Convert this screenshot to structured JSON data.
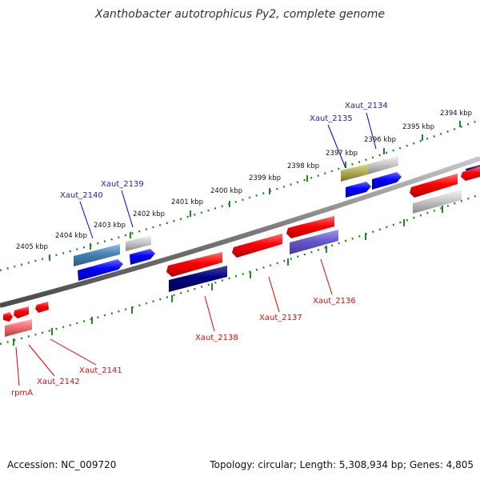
{
  "title": "Xanthobacter autotrophicus Py2, complete genome",
  "footer": {
    "accession": "Accession: NC_009720",
    "summary": "Topology: circular; Length: 5,308,934 bp; Genes: 4,805"
  },
  "scale_labels": [
    "2405 kbp",
    "2404 kbp",
    "2403 kbp",
    "2402 kbp",
    "2401 kbp",
    "2400 kbp",
    "2399 kbp",
    "2398 kbp",
    "2397 kbp",
    "2396 kbp",
    "2395 kbp",
    "2394 kbp"
  ],
  "gene_labels_top": [
    "Xaut_2140",
    "Xaut_2139",
    "Xaut_2135",
    "Xaut_2134"
  ],
  "gene_labels_bottom": [
    "Xaut_2138",
    "Xaut_2137",
    "Xaut_2136",
    "Xaut_2141",
    "Xaut_2142",
    "rpmA"
  ],
  "colors": {
    "forward": "#0000ee",
    "reverse": "#ee0000",
    "backbone": "#888888",
    "ticks": "#228822",
    "label_top": "#2222aa",
    "label_bottom": "#cc1111"
  }
}
